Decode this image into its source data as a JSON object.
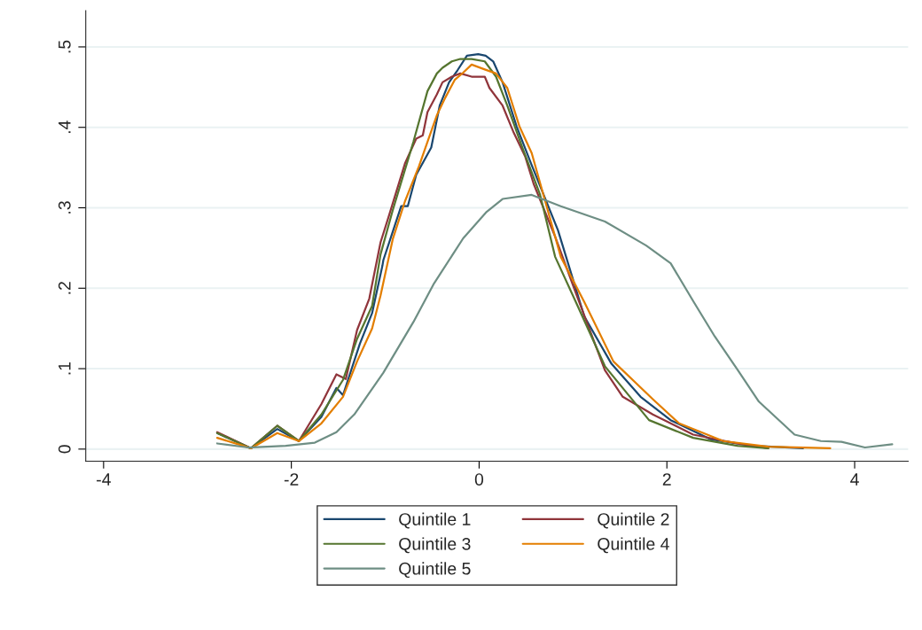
{
  "chart_data": {
    "type": "line",
    "xlim": [
      -4.19,
      4.57
    ],
    "ylim": [
      -0.015,
      0.545
    ],
    "xticks": [
      {
        "value": -4,
        "label": "-4"
      },
      {
        "value": -2,
        "label": "-2"
      },
      {
        "value": 0,
        "label": "0"
      },
      {
        "value": 2,
        "label": "2"
      },
      {
        "value": 4,
        "label": "4"
      }
    ],
    "yticks": [
      {
        "value": 0,
        "label": "0"
      },
      {
        "value": 0.1,
        "label": ".1"
      },
      {
        "value": 0.2,
        "label": ".2"
      },
      {
        "value": 0.3,
        "label": ".3"
      },
      {
        "value": 0.4,
        "label": ".4"
      },
      {
        "value": 0.5,
        "label": ".5"
      }
    ],
    "grid": "y",
    "legend": "bottom",
    "marker": "none",
    "line_style": "solid",
    "series": [
      {
        "name": "Quintile 1",
        "color": "#1a476f",
        "x": [
          -2.79,
          -2.43,
          -2.15,
          -1.92,
          -1.68,
          -1.52,
          -1.45,
          -1.27,
          -1.14,
          -1.03,
          -1.02,
          -0.83,
          -0.76,
          -0.67,
          -0.58,
          -0.51,
          -0.42,
          -0.32,
          -0.23,
          -0.13,
          -0.01,
          0.07,
          0.15,
          0.25,
          0.4,
          0.56,
          0.84,
          1.12,
          1.41,
          1.72,
          2.04,
          2.47,
          2.92,
          3.45
        ],
        "values": [
          0.02,
          0.001,
          0.025,
          0.01,
          0.04,
          0.076,
          0.067,
          0.131,
          0.169,
          0.228,
          0.235,
          0.302,
          0.302,
          0.341,
          0.36,
          0.375,
          0.427,
          0.456,
          0.471,
          0.489,
          0.491,
          0.489,
          0.482,
          0.456,
          0.401,
          0.353,
          0.272,
          0.165,
          0.106,
          0.065,
          0.036,
          0.012,
          0.004,
          0.001
        ]
      },
      {
        "name": "Quintile 2",
        "color": "#90353b",
        "x": [
          -2.79,
          -2.43,
          -2.15,
          -1.92,
          -1.68,
          -1.52,
          -1.42,
          -1.3,
          -1.17,
          -1.05,
          -0.95,
          -0.79,
          -0.67,
          -0.6,
          -0.55,
          -0.45,
          -0.39,
          -0.29,
          -0.2,
          -0.08,
          0.06,
          0.11,
          0.25,
          0.37,
          0.49,
          0.58,
          0.81,
          1.03,
          1.34,
          1.53,
          1.85,
          2.28,
          2.75,
          3.08
        ],
        "values": [
          0.021,
          0.001,
          0.029,
          0.01,
          0.056,
          0.093,
          0.087,
          0.148,
          0.187,
          0.257,
          0.294,
          0.355,
          0.386,
          0.39,
          0.419,
          0.441,
          0.456,
          0.463,
          0.467,
          0.463,
          0.463,
          0.449,
          0.427,
          0.393,
          0.364,
          0.33,
          0.264,
          0.194,
          0.098,
          0.065,
          0.043,
          0.018,
          0.007,
          0.001
        ]
      },
      {
        "name": "Quintile 3",
        "color": "#55752f",
        "x": [
          -2.79,
          -2.43,
          -2.15,
          -1.92,
          -1.68,
          -1.45,
          -1.3,
          -1.14,
          -1.05,
          -0.92,
          -0.7,
          -0.55,
          -0.45,
          -0.39,
          -0.29,
          -0.2,
          -0.08,
          0.06,
          0.18,
          0.3,
          0.46,
          0.65,
          0.81,
          1.03,
          1.34,
          1.81,
          2.28,
          2.75,
          3.08
        ],
        "values": [
          0.02,
          0.001,
          0.029,
          0.01,
          0.043,
          0.086,
          0.137,
          0.178,
          0.242,
          0.297,
          0.382,
          0.445,
          0.467,
          0.474,
          0.482,
          0.485,
          0.485,
          0.482,
          0.463,
          0.427,
          0.375,
          0.316,
          0.239,
          0.183,
          0.103,
          0.036,
          0.014,
          0.004,
          0.001
        ]
      },
      {
        "name": "Quintile 4",
        "color": "#e37e00",
        "x": [
          -2.79,
          -2.43,
          -2.15,
          -1.92,
          -1.68,
          -1.45,
          -1.3,
          -1.14,
          -1.05,
          -0.92,
          -0.79,
          -0.64,
          -0.55,
          -0.45,
          -0.36,
          -0.26,
          -0.17,
          -0.08,
          0.06,
          0.18,
          0.3,
          0.43,
          0.56,
          0.87,
          1.12,
          1.43,
          1.85,
          2.13,
          2.6,
          3.08,
          3.74
        ],
        "values": [
          0.014,
          0.001,
          0.02,
          0.01,
          0.032,
          0.065,
          0.109,
          0.15,
          0.191,
          0.261,
          0.308,
          0.352,
          0.382,
          0.415,
          0.437,
          0.459,
          0.468,
          0.478,
          0.472,
          0.467,
          0.449,
          0.401,
          0.368,
          0.239,
          0.183,
          0.109,
          0.062,
          0.032,
          0.01,
          0.003,
          0.001
        ]
      },
      {
        "name": "Quintile 5",
        "color": "#6e8e84",
        "x": [
          -2.79,
          -2.46,
          -2.06,
          -1.75,
          -1.52,
          -1.33,
          -1.02,
          -0.7,
          -0.48,
          -0.17,
          0.08,
          0.25,
          0.56,
          0.87,
          1.34,
          1.78,
          2.04,
          2.28,
          2.51,
          2.75,
          2.98,
          3.36,
          3.64,
          3.86,
          4.11,
          4.4
        ],
        "values": [
          0.007,
          0.002,
          0.004,
          0.008,
          0.021,
          0.043,
          0.095,
          0.158,
          0.206,
          0.262,
          0.295,
          0.311,
          0.316,
          0.302,
          0.283,
          0.253,
          0.231,
          0.184,
          0.14,
          0.099,
          0.059,
          0.018,
          0.01,
          0.009,
          0.002,
          0.006
        ]
      }
    ]
  }
}
